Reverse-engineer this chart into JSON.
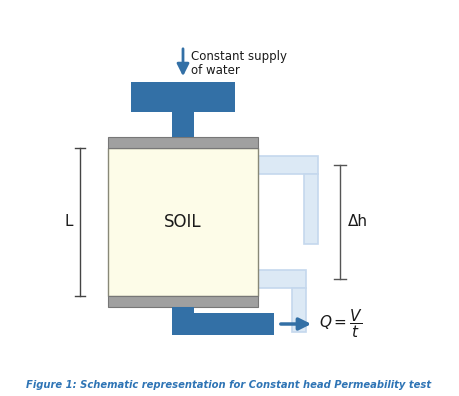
{
  "bg_color": "#ffffff",
  "blue_dark": "#3370A6",
  "blue_light": "#C5D8ED",
  "blue_light_fill": "#DCE9F5",
  "gray": "#A0A0A0",
  "soil_fill": "#FDFCE8",
  "text_color": "#1a1a1a",
  "caption_color": "#2E74B5",
  "title": "Figure 1: Schematic representation for Constant head Permeability test",
  "label_soil": "SOIL",
  "label_L": "L",
  "label_dh": "Δh",
  "supply_text1": "Constant supply",
  "supply_text2": "of water",
  "figw": 4.59,
  "figh": 3.96,
  "dpi": 100
}
